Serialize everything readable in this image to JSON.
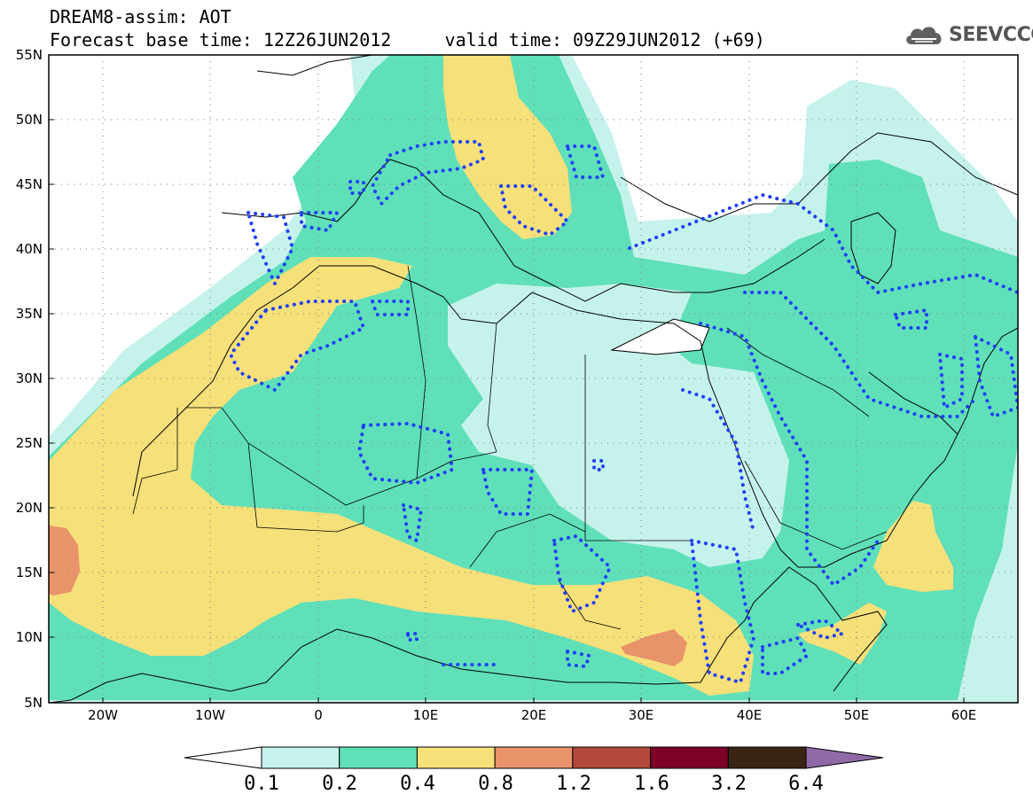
{
  "title": {
    "line1": "DREAM8-assim: AOT",
    "base_time": "Forecast base time: 12Z26JUN2012",
    "valid_time": "valid time: 09Z29JUN2012 (+69)"
  },
  "brand": {
    "name": "SEEVCCC",
    "icon": "cloud-icon"
  },
  "map": {
    "lon_range": [
      -25,
      65
    ],
    "lat_range": [
      5,
      55
    ],
    "lat_ticks": [
      "55N",
      "50N",
      "45N",
      "40N",
      "35N",
      "30N",
      "25N",
      "20N",
      "15N",
      "10N",
      "5N"
    ],
    "lon_ticks": [
      "20W",
      "10W",
      "0",
      "10E",
      "20E",
      "30E",
      "40E",
      "50E",
      "60E"
    ],
    "gridlines": "dotted"
  },
  "colorbar": {
    "levels": [
      "0.1",
      "0.2",
      "0.4",
      "0.8",
      "1.2",
      "1.6",
      "3.2",
      "6.4"
    ],
    "colors": [
      "#ffffff",
      "#c6f2ec",
      "#5fe0b9",
      "#f6e07a",
      "#e9936a",
      "#b3493c",
      "#7d0027",
      "#3a2414",
      "#8f6aa7"
    ],
    "land_outline": "#000000",
    "precip_contour": "#1f3ff5"
  }
}
